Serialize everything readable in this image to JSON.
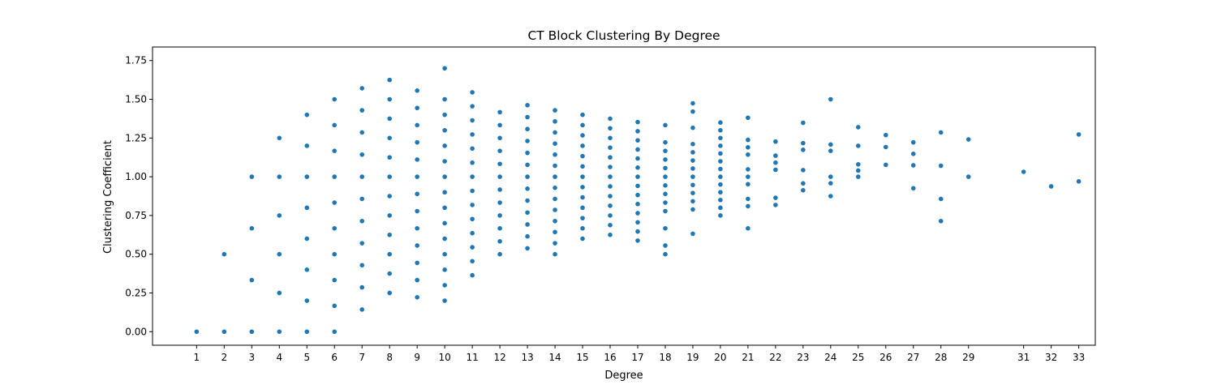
{
  "chart_data": {
    "type": "scatter",
    "title": "CT Block Clustering By Degree",
    "xlabel": "Degree",
    "ylabel": "Clustering Coefficient",
    "xlim": [
      -0.6,
      33.6
    ],
    "ylim": [
      -0.0875,
      1.8375
    ],
    "xticks": [
      1,
      2,
      3,
      4,
      5,
      6,
      7,
      8,
      9,
      10,
      11,
      12,
      13,
      14,
      15,
      16,
      17,
      18,
      19,
      20,
      21,
      22,
      23,
      24,
      25,
      26,
      27,
      28,
      29,
      31,
      32,
      33
    ],
    "yticks": [
      0,
      0.25,
      0.5,
      0.75,
      1.0,
      1.25,
      1.5,
      1.75
    ],
    "ytick_labels": [
      "0.00",
      "0.25",
      "0.50",
      "0.75",
      "1.00",
      "1.25",
      "1.50",
      "1.75"
    ],
    "grid": false,
    "marker_color": "#1f77b4",
    "points_by_degree": {
      "1": [
        0.0
      ],
      "2": [
        0.0,
        0.5
      ],
      "3": [
        0.0,
        0.333,
        0.667,
        1.0
      ],
      "4": [
        0.0,
        0.25,
        0.5,
        0.75,
        1.0,
        1.25
      ],
      "5": [
        0.0,
        0.2,
        0.4,
        0.6,
        0.8,
        1.0,
        1.2,
        1.4
      ],
      "6": [
        0.0,
        0.167,
        0.333,
        0.5,
        0.667,
        0.833,
        1.0,
        1.167,
        1.333,
        1.5
      ],
      "7": [
        0.143,
        0.286,
        0.429,
        0.571,
        0.714,
        0.857,
        1.0,
        1.143,
        1.286,
        1.429,
        1.571
      ],
      "8": [
        0.25,
        0.375,
        0.5,
        0.625,
        0.75,
        0.875,
        1.0,
        1.125,
        1.25,
        1.375,
        1.5,
        1.625
      ],
      "9": [
        0.222,
        0.333,
        0.444,
        0.556,
        0.667,
        0.778,
        0.889,
        1.0,
        1.111,
        1.222,
        1.333,
        1.444,
        1.556
      ],
      "10": [
        0.2,
        0.3,
        0.4,
        0.5,
        0.6,
        0.7,
        0.8,
        0.9,
        1.0,
        1.1,
        1.2,
        1.3,
        1.4,
        1.5,
        1.7
      ],
      "11": [
        0.364,
        0.455,
        0.545,
        0.636,
        0.727,
        0.818,
        0.909,
        1.0,
        1.091,
        1.182,
        1.273,
        1.364,
        1.455,
        1.545
      ],
      "12": [
        0.5,
        0.583,
        0.667,
        0.75,
        0.833,
        0.917,
        1.0,
        1.083,
        1.167,
        1.25,
        1.333,
        1.417
      ],
      "13": [
        0.538,
        0.615,
        0.692,
        0.769,
        0.846,
        0.923,
        1.0,
        1.077,
        1.154,
        1.231,
        1.308,
        1.385,
        1.462
      ],
      "14": [
        0.5,
        0.571,
        0.643,
        0.714,
        0.786,
        0.857,
        0.929,
        1.0,
        1.071,
        1.143,
        1.214,
        1.286,
        1.357,
        1.429
      ],
      "15": [
        0.6,
        0.667,
        0.733,
        0.8,
        0.867,
        0.933,
        1.0,
        1.067,
        1.133,
        1.2,
        1.267,
        1.333,
        1.4
      ],
      "16": [
        0.625,
        0.688,
        0.75,
        0.813,
        0.875,
        0.938,
        1.0,
        1.063,
        1.125,
        1.188,
        1.25,
        1.313,
        1.375
      ],
      "17": [
        0.588,
        0.647,
        0.706,
        0.765,
        0.824,
        0.882,
        0.941,
        1.0,
        1.059,
        1.118,
        1.176,
        1.235,
        1.294,
        1.353
      ],
      "18": [
        0.5,
        0.556,
        0.667,
        0.778,
        0.833,
        0.889,
        0.944,
        1.0,
        1.056,
        1.111,
        1.167,
        1.222,
        1.333
      ],
      "19": [
        0.632,
        0.789,
        0.842,
        0.895,
        0.947,
        1.0,
        1.053,
        1.105,
        1.158,
        1.211,
        1.316,
        1.421,
        1.474
      ],
      "20": [
        0.75,
        0.8,
        0.85,
        0.9,
        0.95,
        1.0,
        1.05,
        1.1,
        1.15,
        1.2,
        1.25,
        1.3,
        1.35
      ],
      "21": [
        0.667,
        0.81,
        0.857,
        0.952,
        1.0,
        1.048,
        1.143,
        1.19,
        1.238,
        1.381
      ],
      "22": [
        0.818,
        0.864,
        1.045,
        1.091,
        1.136,
        1.227
      ],
      "23": [
        0.913,
        0.957,
        1.043,
        1.174,
        1.217,
        1.348
      ],
      "24": [
        0.875,
        0.958,
        1.0,
        1.167,
        1.208,
        1.5
      ],
      "25": [
        1.0,
        1.04,
        1.08,
        1.2,
        1.32
      ],
      "26": [
        1.077,
        1.192,
        1.269
      ],
      "27": [
        0.926,
        1.074,
        1.148,
        1.222
      ],
      "28": [
        0.714,
        0.857,
        1.071,
        1.286
      ],
      "29": [
        1.0,
        1.241
      ],
      "31": [
        1.032
      ],
      "32": [
        0.938
      ],
      "33": [
        0.97,
        1.273
      ]
    }
  }
}
